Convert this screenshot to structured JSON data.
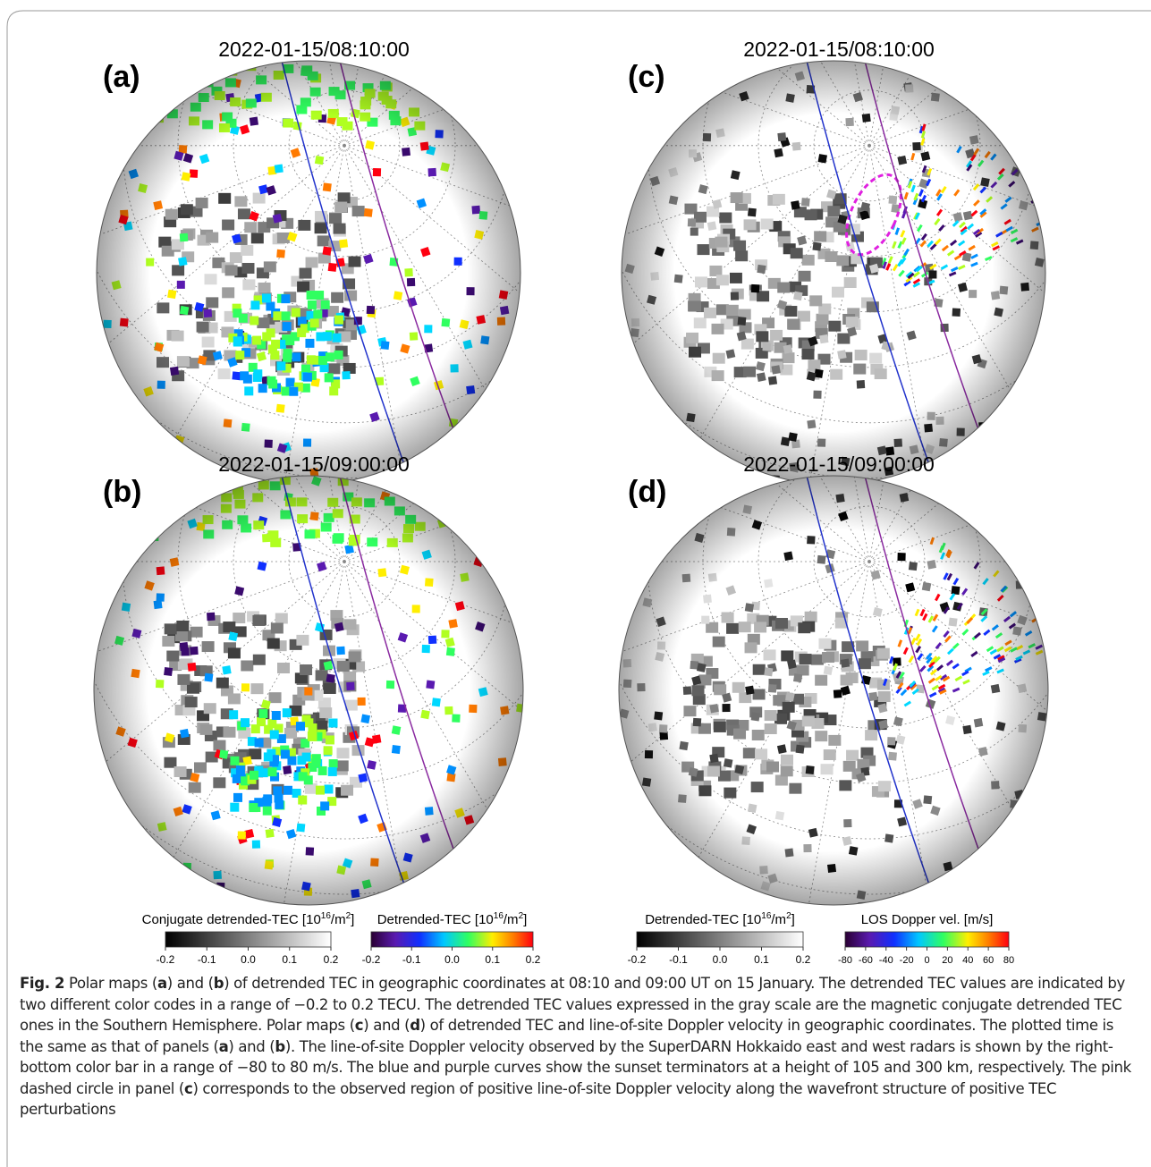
{
  "panels": [
    {
      "label": "(a)",
      "time": "2022-01-15/08:10:00"
    },
    {
      "label": "(c)",
      "time": "2022-01-15/08:10:00"
    },
    {
      "label": "(b)",
      "time": "2022-01-15/09:00:00"
    },
    {
      "label": "(d)",
      "time": "2022-01-15/09:00:00"
    }
  ],
  "colorbars": [
    {
      "title": [
        {
          "text": "Conjugate detrended-TEC [10"
        },
        {
          "text": "16",
          "sup": true
        },
        {
          "text": "/m"
        },
        {
          "text": "2",
          "sup": true
        },
        {
          "text": "]"
        }
      ],
      "ticks": [
        "-0.2",
        "-0.1",
        "0.0",
        "0.1",
        "0.2"
      ]
    },
    {
      "title": [
        {
          "text": "Detrended-TEC [10"
        },
        {
          "text": "16",
          "sup": true
        },
        {
          "text": "/m"
        },
        {
          "text": "2",
          "sup": true
        },
        {
          "text": "]"
        }
      ],
      "ticks": [
        "-0.2",
        "-0.1",
        "0.0",
        "0.1",
        "0.2"
      ]
    },
    {
      "title": [
        {
          "text": "Detrended-TEC [10"
        },
        {
          "text": "16",
          "sup": true
        },
        {
          "text": "/m"
        },
        {
          "text": "2",
          "sup": true
        },
        {
          "text": "]"
        }
      ],
      "ticks": [
        "-0.2",
        "-0.1",
        "0.0",
        "0.1",
        "0.2"
      ]
    },
    {
      "title": [
        {
          "text": "LOS Dopper vel. [m/s]"
        }
      ],
      "ticks": [
        "-80",
        "-60",
        "-40",
        "-20",
        "0",
        "20",
        "40",
        "60",
        "80"
      ]
    }
  ],
  "caption": [
    {
      "text": "Fig. 2",
      "bold": true
    },
    {
      "text": "  Polar maps ("
    },
    {
      "text": "a",
      "bold": true
    },
    {
      "text": ") and ("
    },
    {
      "text": "b",
      "bold": true
    },
    {
      "text": ") of detrended TEC in geographic coordinates at 08:10 and 09:00 UT on 15 January. The detrended TEC values are indicated by two different color codes in a range of −0.2 to 0.2 TECU. The detrended TEC values expressed in the gray scale are the magnetic conjugate detrended TEC ones in the Southern Hemisphere. Polar maps ("
    },
    {
      "text": "c",
      "bold": true
    },
    {
      "text": ") and ("
    },
    {
      "text": "d",
      "bold": true
    },
    {
      "text": ") of detrended TEC and line-of-site Doppler velocity in geographic coordinates. The plotted time is the same as that of panels ("
    },
    {
      "text": "a",
      "bold": true
    },
    {
      "text": ") and ("
    },
    {
      "text": "b",
      "bold": true
    },
    {
      "text": "). The line-of-site Doppler velocity observed by the SuperDARN Hokkaido east and west radars is shown by the right-bottom color bar in a range of −80 to 80 m/s. The blue and purple curves show the sunset terminators at a height of 105 and 300 km, respectively. The pink dashed circle in panel ("
    },
    {
      "text": "c",
      "bold": true
    },
    {
      "text": ") corresponds to the observed region of positive line-of-site Doppler velocity along the wavefront structure of positive TEC perturbations"
    }
  ]
}
